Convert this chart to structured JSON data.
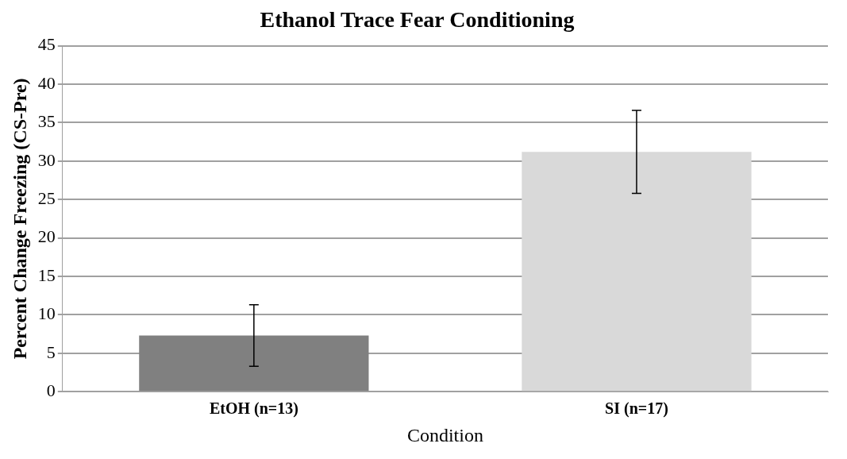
{
  "chart_data": {
    "type": "bar",
    "title": "Ethanol Trace Fear Conditioning",
    "xlabel": "Condition",
    "ylabel": "Percent Change Freezing (CS-Pre)",
    "categories": [
      "EtOH (n=13)",
      "SI (n=17)"
    ],
    "values": [
      7.3,
      31.2
    ],
    "colors": [
      "#808080",
      "#d9d9d9"
    ],
    "errors": [
      4.0,
      5.4
    ],
    "ylim": [
      0,
      45
    ],
    "yticks": [
      0,
      5,
      10,
      15,
      20,
      25,
      30,
      35,
      40,
      45
    ],
    "grid": "y",
    "legend": false
  }
}
